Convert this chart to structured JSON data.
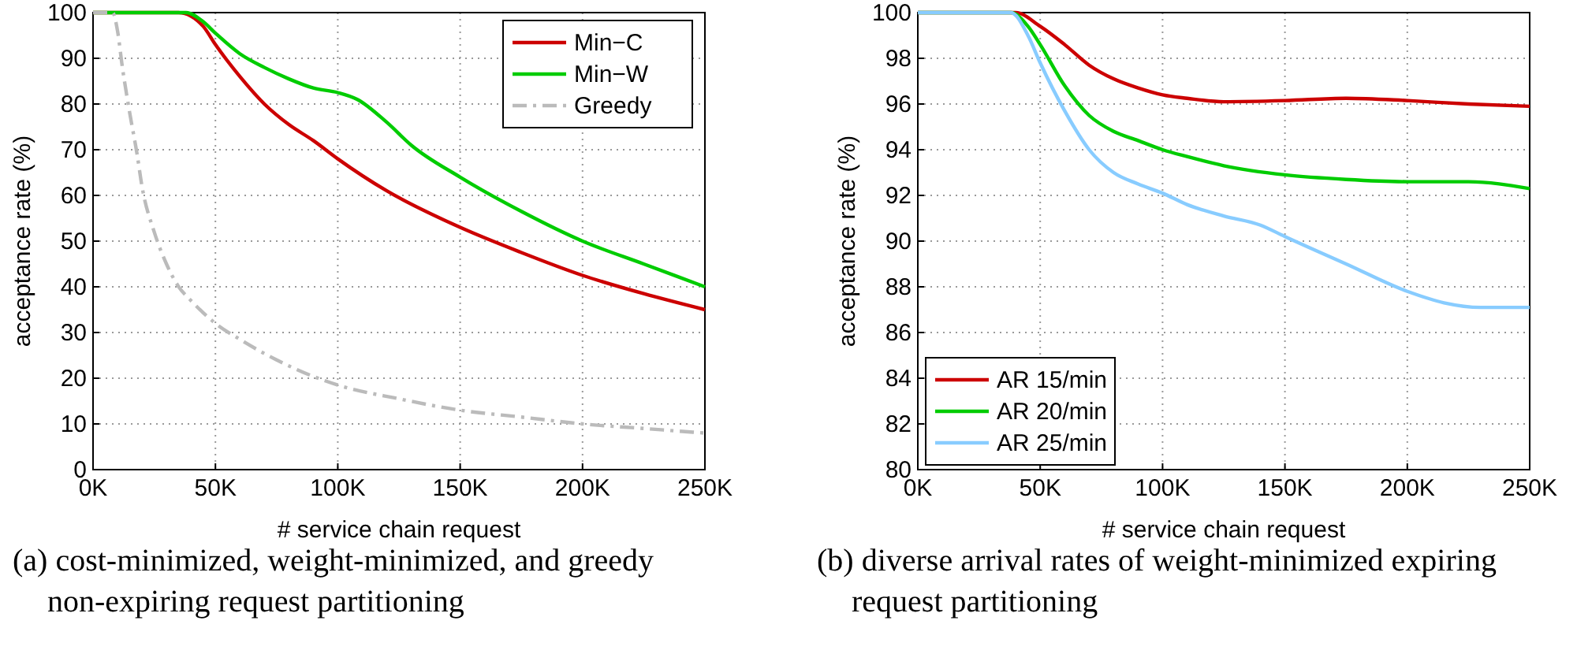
{
  "chart_data": [
    {
      "type": "line",
      "title": "(a) cost-minimized, weight-minimized, and greedy non-expiring request partitioning",
      "xlabel": "# service chain request",
      "ylabel": "acceptance rate (%)",
      "xlim": [
        0,
        250000
      ],
      "xticks": [
        {
          "value": 0,
          "label": "0K"
        },
        {
          "value": 50000,
          "label": "50K"
        },
        {
          "value": 100000,
          "label": "100K"
        },
        {
          "value": 150000,
          "label": "150K"
        },
        {
          "value": 200000,
          "label": "200K"
        },
        {
          "value": 250000,
          "label": "250K"
        }
      ],
      "ylim": [
        0,
        100
      ],
      "yticks": [
        0,
        10,
        20,
        30,
        40,
        50,
        60,
        70,
        80,
        90,
        100
      ],
      "grid": true,
      "legend": "top right",
      "series": [
        {
          "name": "Min−C",
          "color": "#cc0000",
          "line_style": "solid",
          "x": [
            0,
            35000,
            45000,
            50000,
            60000,
            70000,
            80000,
            90000,
            100000,
            120000,
            150000,
            175000,
            200000,
            225000,
            250000
          ],
          "values": [
            100,
            100,
            97,
            93,
            86,
            80,
            75.5,
            72,
            68,
            61,
            53,
            47.5,
            42.5,
            38.5,
            35
          ]
        },
        {
          "name": "Min−W",
          "color": "#00cc00",
          "line_style": "solid",
          "x": [
            0,
            38000,
            45000,
            50000,
            60000,
            70000,
            80000,
            90000,
            100000,
            108000,
            120000,
            130000,
            150000,
            175000,
            200000,
            225000,
            250000
          ],
          "values": [
            100,
            100,
            98,
            95.5,
            91,
            88,
            85.5,
            83.5,
            82.5,
            81,
            76,
            71,
            64,
            56.5,
            50,
            45,
            40
          ]
        },
        {
          "name": "Greedy",
          "color": "#bbbbbb",
          "line_style": "dashed",
          "x": [
            0,
            8000,
            10000,
            12000,
            15000,
            18000,
            20000,
            25000,
            30000,
            35000,
            40000,
            50000,
            60000,
            75000,
            100000,
            125000,
            150000,
            175000,
            200000,
            225000,
            250000
          ],
          "values": [
            100,
            100,
            96,
            88,
            78,
            69,
            62,
            52,
            45,
            40,
            37,
            32,
            28.5,
            24,
            18.5,
            15.5,
            13,
            11.5,
            10,
            9,
            8
          ]
        }
      ]
    },
    {
      "type": "line",
      "title": "(b) diverse arrival rates of weight-minimized expiring request partitioning",
      "xlabel": "# service chain request",
      "ylabel": "acceptance rate (%)",
      "xlim": [
        0,
        250000
      ],
      "xticks": [
        {
          "value": 0,
          "label": "0K"
        },
        {
          "value": 50000,
          "label": "50K"
        },
        {
          "value": 100000,
          "label": "100K"
        },
        {
          "value": 150000,
          "label": "150K"
        },
        {
          "value": 200000,
          "label": "200K"
        },
        {
          "value": 250000,
          "label": "250K"
        }
      ],
      "ylim": [
        80,
        100
      ],
      "yticks": [
        80,
        82,
        84,
        86,
        88,
        90,
        92,
        94,
        96,
        98,
        100
      ],
      "grid": true,
      "legend": "bottom left",
      "series": [
        {
          "name": "AR 15/min",
          "color": "#cc0000",
          "line_style": "solid",
          "x": [
            0,
            40000,
            50000,
            60000,
            70000,
            80000,
            90000,
            100000,
            110000,
            125000,
            150000,
            175000,
            200000,
            225000,
            250000
          ],
          "values": [
            100,
            100,
            99.4,
            98.6,
            97.7,
            97.1,
            96.7,
            96.4,
            96.25,
            96.1,
            96.15,
            96.25,
            96.15,
            96,
            95.9
          ]
        },
        {
          "name": "AR 20/min",
          "color": "#00cc00",
          "line_style": "solid",
          "x": [
            0,
            38000,
            45000,
            50000,
            60000,
            70000,
            80000,
            90000,
            100000,
            110000,
            125000,
            150000,
            175000,
            200000,
            225000,
            250000
          ],
          "values": [
            100,
            100,
            99.4,
            98.6,
            96.8,
            95.5,
            94.8,
            94.4,
            94,
            93.7,
            93.3,
            92.9,
            92.7,
            92.6,
            92.6,
            92.3
          ]
        },
        {
          "name": "AR 25/min",
          "color": "#88ccff",
          "line_style": "solid",
          "x": [
            0,
            38000,
            45000,
            50000,
            60000,
            70000,
            80000,
            90000,
            100000,
            110000,
            125000,
            140000,
            150000,
            175000,
            200000,
            215000,
            230000,
            250000
          ],
          "values": [
            100,
            100,
            99,
            97.8,
            95.7,
            94,
            93,
            92.5,
            92.1,
            91.6,
            91.1,
            90.7,
            90.2,
            89,
            87.8,
            87.3,
            87.1,
            87.1
          ]
        }
      ]
    }
  ]
}
